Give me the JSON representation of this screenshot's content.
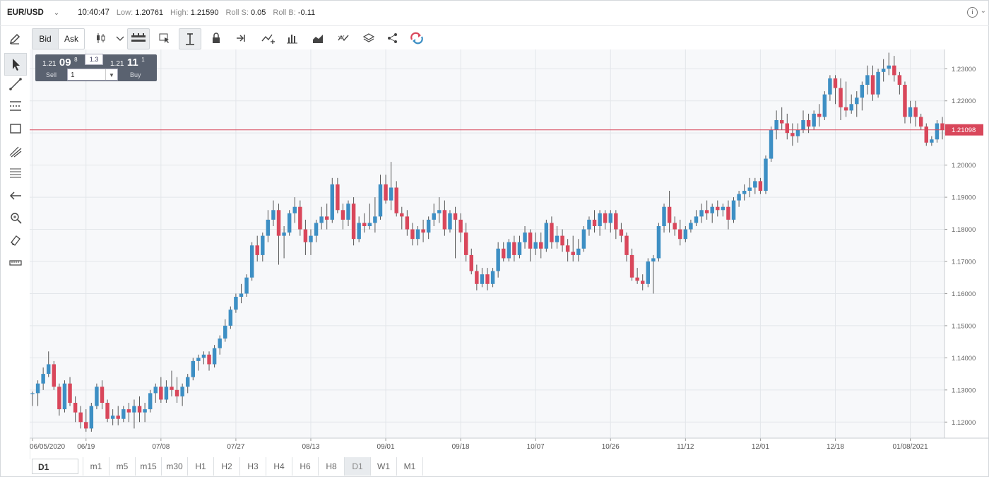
{
  "header": {
    "symbol": "EUR/USD",
    "time": "10:40:47",
    "low_label": "Low:",
    "low_value": "1.20761",
    "high_label": "High:",
    "high_value": "1.21590",
    "roll_s_label": "Roll S:",
    "roll_s_value": "0.05",
    "roll_b_label": "Roll B:",
    "roll_b_value": "-0.11"
  },
  "toolbar": {
    "bid_label": "Bid",
    "ask_label": "Ask",
    "icons": [
      "candlestick-icon",
      "chevron-down-icon",
      "bars-toggle-icon",
      "cursor-table-icon",
      "text-cursor-icon",
      "lock-icon",
      "arrow-to-line-icon",
      "indicator-icon",
      "volume-icon",
      "area-chart-icon",
      "compare-icon",
      "layers-icon",
      "share-icon",
      "sync-icon"
    ]
  },
  "left_tools": [
    "cursor-icon",
    "line-icon",
    "channel-icon",
    "rectangle-icon",
    "fib-icon",
    "horizontal-lines-icon",
    "back-arrow-icon",
    "zoom-icon",
    "eraser-icon",
    "ruler-icon"
  ],
  "trade": {
    "sell_price_small": "1.21",
    "sell_price_big": "09",
    "sell_price_sup": "8",
    "buy_price_small": "1.21",
    "buy_price_big": "11",
    "buy_price_sup": "1",
    "sell_label": "Sell",
    "buy_label": "Buy",
    "spread": "1.3",
    "quantity": "1"
  },
  "timeframes": {
    "selected": "D1",
    "options": [
      "m1",
      "m5",
      "m15",
      "m30",
      "H1",
      "H2",
      "H3",
      "H4",
      "H6",
      "H8",
      "D1",
      "W1",
      "M1"
    ],
    "active": "D1"
  },
  "colors": {
    "up": "#3d8fc4",
    "down": "#d9475b",
    "price_line": "#d9475b",
    "background": "#f7f8fa",
    "grid": "#e3e6ea"
  },
  "chart_data": {
    "type": "candlestick",
    "ylim": [
      1.115,
      1.236
    ],
    "yticks": [
      "1.12000",
      "1.13000",
      "1.14000",
      "1.15000",
      "1.16000",
      "1.17000",
      "1.18000",
      "1.19000",
      "1.20000",
      "1.21000",
      "1.22000",
      "1.23000"
    ],
    "ytick_values": [
      1.12,
      1.13,
      1.14,
      1.15,
      1.16,
      1.17,
      1.18,
      1.19,
      1.2,
      1.21,
      1.22,
      1.23
    ],
    "xticks": [
      "06/05/2020",
      "06/19",
      "07/08",
      "07/27",
      "08/13",
      "09/01",
      "09/18",
      "10/07",
      "10/26",
      "11/12",
      "12/01",
      "12/18",
      "01/08/2021"
    ],
    "xtick_index": [
      0,
      10,
      24,
      38,
      52,
      66,
      80,
      94,
      108,
      122,
      136,
      150,
      164
    ],
    "current_price": 1.21098,
    "current_price_label": "1.21098",
    "grid": true,
    "candles": [
      [
        1.129,
        1.1295,
        1.125,
        1.129
      ],
      [
        1.129,
        1.133,
        1.125,
        1.132
      ],
      [
        1.132,
        1.137,
        1.13,
        1.135
      ],
      [
        1.135,
        1.142,
        1.134,
        1.138
      ],
      [
        1.138,
        1.139,
        1.13,
        1.131
      ],
      [
        1.131,
        1.132,
        1.122,
        1.124
      ],
      [
        1.124,
        1.133,
        1.123,
        1.132
      ],
      [
        1.132,
        1.134,
        1.125,
        1.126
      ],
      [
        1.126,
        1.128,
        1.12,
        1.123
      ],
      [
        1.123,
        1.125,
        1.118,
        1.12
      ],
      [
        1.12,
        1.124,
        1.117,
        1.118
      ],
      [
        1.118,
        1.126,
        1.117,
        1.125
      ],
      [
        1.125,
        1.132,
        1.124,
        1.131
      ],
      [
        1.131,
        1.133,
        1.124,
        1.126
      ],
      [
        1.126,
        1.127,
        1.12,
        1.121
      ],
      [
        1.121,
        1.124,
        1.119,
        1.122
      ],
      [
        1.122,
        1.125,
        1.119,
        1.121
      ],
      [
        1.121,
        1.125,
        1.12,
        1.124
      ],
      [
        1.124,
        1.126,
        1.12,
        1.123
      ],
      [
        1.123,
        1.127,
        1.118,
        1.125
      ],
      [
        1.125,
        1.128,
        1.12,
        1.123
      ],
      [
        1.123,
        1.126,
        1.12,
        1.124
      ],
      [
        1.124,
        1.13,
        1.123,
        1.129
      ],
      [
        1.129,
        1.132,
        1.126,
        1.131
      ],
      [
        1.131,
        1.134,
        1.126,
        1.127
      ],
      [
        1.127,
        1.133,
        1.126,
        1.131
      ],
      [
        1.131,
        1.136,
        1.128,
        1.13
      ],
      [
        1.13,
        1.134,
        1.126,
        1.128
      ],
      [
        1.128,
        1.132,
        1.125,
        1.131
      ],
      [
        1.131,
        1.135,
        1.129,
        1.134
      ],
      [
        1.134,
        1.14,
        1.133,
        1.139
      ],
      [
        1.139,
        1.141,
        1.136,
        1.14
      ],
      [
        1.14,
        1.142,
        1.138,
        1.141
      ],
      [
        1.141,
        1.142,
        1.136,
        1.138
      ],
      [
        1.138,
        1.144,
        1.137,
        1.143
      ],
      [
        1.143,
        1.147,
        1.141,
        1.146
      ],
      [
        1.146,
        1.152,
        1.145,
        1.15
      ],
      [
        1.15,
        1.156,
        1.149,
        1.155
      ],
      [
        1.155,
        1.16,
        1.154,
        1.159
      ],
      [
        1.159,
        1.163,
        1.157,
        1.16
      ],
      [
        1.16,
        1.166,
        1.159,
        1.165
      ],
      [
        1.165,
        1.176,
        1.164,
        1.175
      ],
      [
        1.175,
        1.178,
        1.17,
        1.172
      ],
      [
        1.172,
        1.179,
        1.17,
        1.178
      ],
      [
        1.178,
        1.186,
        1.176,
        1.183
      ],
      [
        1.183,
        1.189,
        1.181,
        1.186
      ],
      [
        1.186,
        1.188,
        1.169,
        1.178
      ],
      [
        1.178,
        1.181,
        1.171,
        1.179
      ],
      [
        1.179,
        1.186,
        1.178,
        1.185
      ],
      [
        1.185,
        1.19,
        1.182,
        1.187
      ],
      [
        1.187,
        1.189,
        1.178,
        1.18
      ],
      [
        1.18,
        1.183,
        1.172,
        1.176
      ],
      [
        1.176,
        1.18,
        1.172,
        1.178
      ],
      [
        1.178,
        1.183,
        1.176,
        1.182
      ],
      [
        1.182,
        1.187,
        1.18,
        1.184
      ],
      [
        1.184,
        1.188,
        1.18,
        1.183
      ],
      [
        1.183,
        1.196,
        1.182,
        1.194
      ],
      [
        1.194,
        1.196,
        1.185,
        1.186
      ],
      [
        1.186,
        1.188,
        1.18,
        1.183
      ],
      [
        1.183,
        1.189,
        1.181,
        1.188
      ],
      [
        1.188,
        1.19,
        1.175,
        1.177
      ],
      [
        1.177,
        1.184,
        1.176,
        1.182
      ],
      [
        1.182,
        1.185,
        1.179,
        1.181
      ],
      [
        1.181,
        1.188,
        1.18,
        1.182
      ],
      [
        1.182,
        1.19,
        1.179,
        1.184
      ],
      [
        1.184,
        1.197,
        1.183,
        1.194
      ],
      [
        1.194,
        1.197,
        1.188,
        1.189
      ],
      [
        1.189,
        1.201,
        1.186,
        1.193
      ],
      [
        1.193,
        1.195,
        1.184,
        1.185
      ],
      [
        1.185,
        1.187,
        1.18,
        1.184
      ],
      [
        1.184,
        1.186,
        1.178,
        1.18
      ],
      [
        1.18,
        1.182,
        1.175,
        1.177
      ],
      [
        1.177,
        1.181,
        1.175,
        1.18
      ],
      [
        1.18,
        1.183,
        1.176,
        1.179
      ],
      [
        1.179,
        1.184,
        1.177,
        1.183
      ],
      [
        1.183,
        1.188,
        1.181,
        1.185
      ],
      [
        1.185,
        1.19,
        1.182,
        1.186
      ],
      [
        1.186,
        1.189,
        1.178,
        1.18
      ],
      [
        1.18,
        1.186,
        1.179,
        1.185
      ],
      [
        1.185,
        1.187,
        1.171,
        1.183
      ],
      [
        1.183,
        1.185,
        1.176,
        1.179
      ],
      [
        1.179,
        1.182,
        1.17,
        1.172
      ],
      [
        1.172,
        1.174,
        1.166,
        1.167
      ],
      [
        1.167,
        1.169,
        1.161,
        1.163
      ],
      [
        1.163,
        1.168,
        1.162,
        1.166
      ],
      [
        1.166,
        1.168,
        1.161,
        1.163
      ],
      [
        1.163,
        1.168,
        1.162,
        1.167
      ],
      [
        1.167,
        1.176,
        1.165,
        1.174
      ],
      [
        1.174,
        1.176,
        1.17,
        1.171
      ],
      [
        1.171,
        1.177,
        1.17,
        1.176
      ],
      [
        1.176,
        1.178,
        1.17,
        1.172
      ],
      [
        1.172,
        1.178,
        1.171,
        1.176
      ],
      [
        1.176,
        1.181,
        1.174,
        1.179
      ],
      [
        1.179,
        1.18,
        1.17,
        1.174
      ],
      [
        1.174,
        1.179,
        1.172,
        1.176
      ],
      [
        1.176,
        1.179,
        1.171,
        1.174
      ],
      [
        1.174,
        1.183,
        1.173,
        1.182
      ],
      [
        1.182,
        1.184,
        1.174,
        1.176
      ],
      [
        1.176,
        1.181,
        1.174,
        1.178
      ],
      [
        1.178,
        1.18,
        1.173,
        1.175
      ],
      [
        1.175,
        1.177,
        1.17,
        1.173
      ],
      [
        1.173,
        1.178,
        1.17,
        1.172
      ],
      [
        1.172,
        1.177,
        1.17,
        1.174
      ],
      [
        1.174,
        1.181,
        1.173,
        1.18
      ],
      [
        1.18,
        1.184,
        1.178,
        1.183
      ],
      [
        1.183,
        1.186,
        1.179,
        1.181
      ],
      [
        1.181,
        1.186,
        1.178,
        1.185
      ],
      [
        1.185,
        1.186,
        1.18,
        1.182
      ],
      [
        1.182,
        1.186,
        1.179,
        1.185
      ],
      [
        1.185,
        1.186,
        1.177,
        1.18
      ],
      [
        1.18,
        1.182,
        1.176,
        1.178
      ],
      [
        1.178,
        1.179,
        1.17,
        1.172
      ],
      [
        1.172,
        1.174,
        1.164,
        1.165
      ],
      [
        1.165,
        1.168,
        1.163,
        1.164
      ],
      [
        1.164,
        1.166,
        1.161,
        1.163
      ],
      [
        1.163,
        1.171,
        1.162,
        1.17
      ],
      [
        1.17,
        1.172,
        1.16,
        1.171
      ],
      [
        1.171,
        1.182,
        1.17,
        1.181
      ],
      [
        1.181,
        1.188,
        1.179,
        1.187
      ],
      [
        1.187,
        1.192,
        1.179,
        1.182
      ],
      [
        1.182,
        1.184,
        1.178,
        1.18
      ],
      [
        1.18,
        1.183,
        1.175,
        1.177
      ],
      [
        1.177,
        1.181,
        1.176,
        1.18
      ],
      [
        1.18,
        1.183,
        1.179,
        1.182
      ],
      [
        1.182,
        1.186,
        1.181,
        1.184
      ],
      [
        1.184,
        1.188,
        1.182,
        1.186
      ],
      [
        1.186,
        1.189,
        1.183,
        1.185
      ],
      [
        1.185,
        1.188,
        1.182,
        1.187
      ],
      [
        1.187,
        1.189,
        1.184,
        1.186
      ],
      [
        1.186,
        1.188,
        1.184,
        1.187
      ],
      [
        1.187,
        1.189,
        1.18,
        1.183
      ],
      [
        1.183,
        1.19,
        1.182,
        1.189
      ],
      [
        1.189,
        1.192,
        1.187,
        1.191
      ],
      [
        1.191,
        1.194,
        1.189,
        1.192
      ],
      [
        1.192,
        1.196,
        1.19,
        1.193
      ],
      [
        1.193,
        1.196,
        1.191,
        1.195
      ],
      [
        1.195,
        1.196,
        1.191,
        1.192
      ],
      [
        1.192,
        1.203,
        1.191,
        1.202
      ],
      [
        1.202,
        1.212,
        1.201,
        1.211
      ],
      [
        1.211,
        1.217,
        1.208,
        1.214
      ],
      [
        1.214,
        1.218,
        1.211,
        1.213
      ],
      [
        1.213,
        1.216,
        1.208,
        1.21
      ],
      [
        1.21,
        1.213,
        1.206,
        1.209
      ],
      [
        1.209,
        1.213,
        1.207,
        1.211
      ],
      [
        1.211,
        1.217,
        1.21,
        1.214
      ],
      [
        1.214,
        1.216,
        1.21,
        1.212
      ],
      [
        1.212,
        1.217,
        1.211,
        1.216
      ],
      [
        1.216,
        1.219,
        1.212,
        1.215
      ],
      [
        1.215,
        1.223,
        1.214,
        1.222
      ],
      [
        1.222,
        1.228,
        1.22,
        1.227
      ],
      [
        1.227,
        1.228,
        1.219,
        1.224
      ],
      [
        1.224,
        1.227,
        1.214,
        1.218
      ],
      [
        1.218,
        1.226,
        1.215,
        1.217
      ],
      [
        1.217,
        1.222,
        1.216,
        1.219
      ],
      [
        1.219,
        1.223,
        1.215,
        1.221
      ],
      [
        1.221,
        1.226,
        1.217,
        1.225
      ],
      [
        1.225,
        1.231,
        1.222,
        1.228
      ],
      [
        1.228,
        1.231,
        1.22,
        1.222
      ],
      [
        1.222,
        1.23,
        1.221,
        1.229
      ],
      [
        1.229,
        1.233,
        1.226,
        1.23
      ],
      [
        1.23,
        1.235,
        1.228,
        1.231
      ],
      [
        1.231,
        1.234,
        1.226,
        1.228
      ],
      [
        1.228,
        1.229,
        1.222,
        1.225
      ],
      [
        1.225,
        1.226,
        1.213,
        1.215
      ],
      [
        1.215,
        1.22,
        1.213,
        1.218
      ],
      [
        1.218,
        1.22,
        1.212,
        1.215
      ],
      [
        1.215,
        1.216,
        1.211,
        1.212
      ],
      [
        1.212,
        1.213,
        1.206,
        1.207
      ],
      [
        1.207,
        1.209,
        1.206,
        1.208
      ],
      [
        1.208,
        1.214,
        1.207,
        1.213
      ],
      [
        1.213,
        1.215,
        1.208,
        1.211
      ]
    ]
  }
}
